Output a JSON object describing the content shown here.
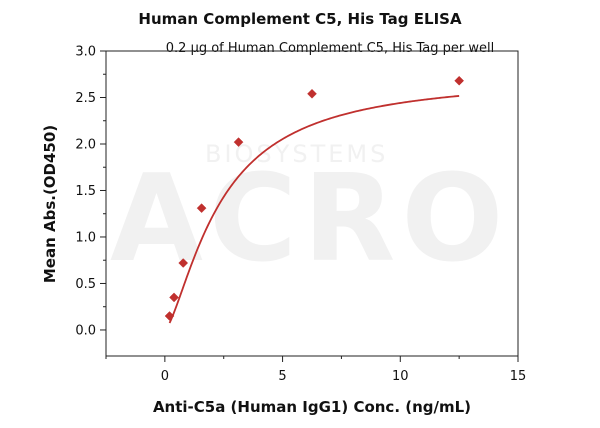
{
  "chart_data": {
    "type": "scatter",
    "title": "Human Complement C5, His Tag ELISA",
    "subtitle": "0.2 µg of Human Complement C5, His Tag per well",
    "xlabel": "Anti-C5a (Human IgG1) Conc. (ng/mL)",
    "ylabel": "Mean Abs.(OD450)",
    "xlim": [
      -2.5,
      15
    ],
    "ylim": [
      -0.28,
      3.0
    ],
    "xticks": [
      0,
      5,
      10,
      15
    ],
    "yticks": [
      0.0,
      0.5,
      1.0,
      1.5,
      2.0,
      2.5,
      3.0
    ],
    "x_tick_labels": [
      "0",
      "5",
      "10",
      "15"
    ],
    "y_tick_labels": [
      "0.0",
      "0.5",
      "1.0",
      "1.5",
      "2.0",
      "2.5",
      "3.0"
    ],
    "grid": false,
    "series": [
      {
        "x": [
          0.2,
          0.39,
          0.78,
          1.56,
          3.13,
          6.25,
          12.5
        ],
        "y": [
          0.15,
          0.35,
          0.72,
          1.31,
          2.02,
          2.54,
          2.68
        ],
        "fit": "sigmoidal",
        "color": "#c0302e"
      }
    ],
    "watermark": {
      "brand": "ACRO",
      "text": "BIOSYSTEMS"
    }
  }
}
